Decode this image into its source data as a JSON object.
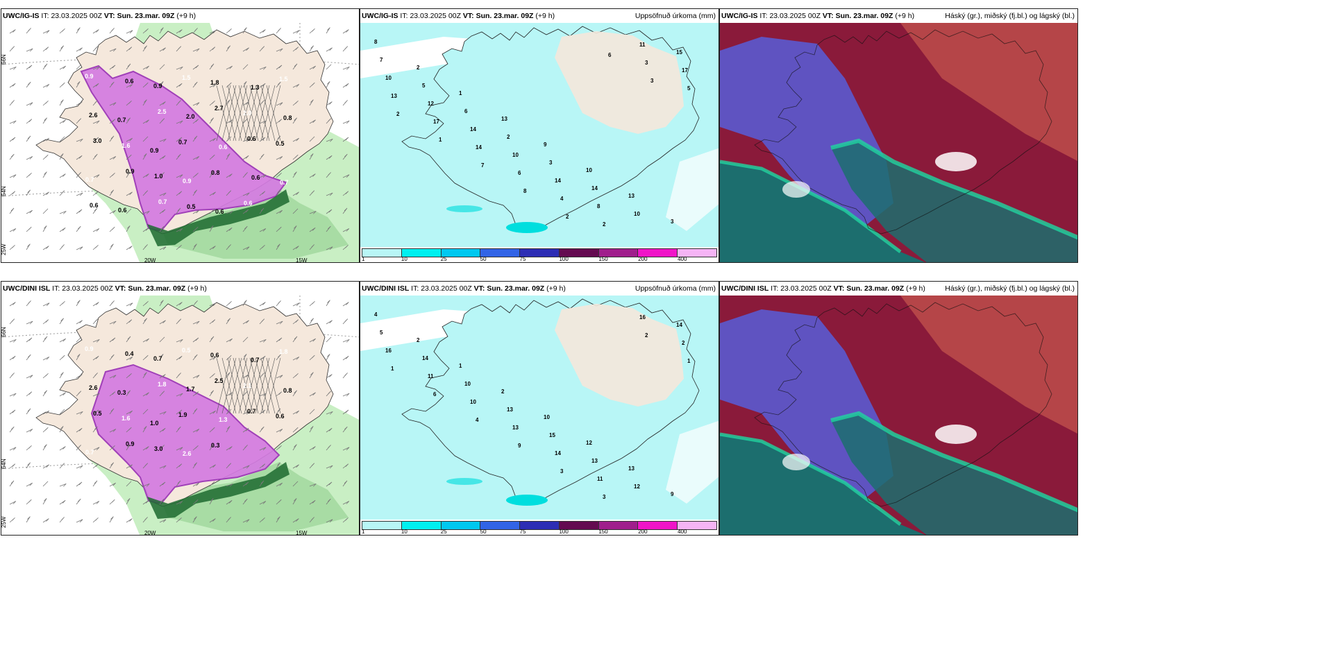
{
  "panels": [
    {
      "model": "UWC/IG-IS",
      "it_label": "IT:",
      "it": "23.03.2025 00Z",
      "vt_label": "VT:",
      "vt": "Sun. 23.mar. 09Z",
      "lead": "(+9 h)",
      "right": ""
    },
    {
      "model": "UWC/IG-IS",
      "it_label": "IT:",
      "it": "23.03.2025 00Z",
      "vt_label": "VT:",
      "vt": "Sun. 23.mar. 09Z",
      "lead": "(+9 h)",
      "right": "Uppsöfnuð úrkoma (mm)"
    },
    {
      "model": "UWC/IG-IS",
      "it_label": "IT:",
      "it": "23.03.2025 00Z",
      "vt_label": "VT:",
      "vt": "Sun. 23.mar. 09Z",
      "lead": "(+9 h)",
      "right": "Háský (gr.), miðský (fj.bl.) og lágský (bl.)"
    },
    {
      "model": "UWC/DINI ISL",
      "it_label": "IT:",
      "it": "23.03.2025 00Z",
      "vt_label": "VT:",
      "vt": "Sun. 23.mar. 09Z",
      "lead": "(+9 h)",
      "right": ""
    },
    {
      "model": "UWC/DINI ISL",
      "it_label": "IT:",
      "it": "23.03.2025 00Z",
      "vt_label": "VT:",
      "vt": "Sun. 23.mar. 09Z",
      "lead": "(+9 h)",
      "right": "Uppsöfnuð úrkoma (mm)"
    },
    {
      "model": "UWC/DINI ISL",
      "it_label": "IT:",
      "it": "23.03.2025 00Z",
      "vt_label": "VT:",
      "vt": "Sun. 23.mar. 09Z",
      "lead": "(+9 h)",
      "right": "Háský (gr.), miðský (fj.bl.) og lágský (bl.)"
    }
  ],
  "axes": {
    "lat66": "66N",
    "lat64": "64N",
    "lon25": "25W",
    "lon20": "20W",
    "lon15": "15W"
  },
  "precip_scale": {
    "ticks": [
      "1",
      "10",
      "25",
      "50",
      "75",
      "100",
      "150",
      "200",
      "400"
    ],
    "colors": [
      "#b8f6f6",
      "#00f0f0",
      "#00c8f0",
      "#3264e6",
      "#2d2db4",
      "#640a50",
      "#a01e8c",
      "#f014c8",
      "#f5b4f5"
    ]
  },
  "colors": {
    "land": "#f5e8dc",
    "land_shade": "#e8dccf",
    "sea": "#ffffff",
    "precip_light": "#b8f6f6",
    "rain_green_light": "#c9efc4",
    "rain_green": "#7cc07a",
    "rain_green_dark": "#1d6a30",
    "snow_magenta": "#d27ae0",
    "snow_magenta_dark": "#a040b8",
    "cloud_high": "#8a1a3a",
    "cloud_mid": "#5a5ad0",
    "cloud_low": "#1c6e6e",
    "cloud_low_edge": "#20d4a0"
  },
  "wind_left_labels_top": [
    "0.9",
    "0.6",
    "0.9",
    "1.5",
    "1.8",
    "1.3",
    "1.5",
    "2.6",
    "0.7",
    "2.5",
    "2.0",
    "2.7",
    "2.0",
    "0.8",
    "3.0",
    "1.6",
    "0.9",
    "0.7",
    "0.6",
    "0.6",
    "0.5",
    "0.7",
    "0.9",
    "1.0",
    "0.9",
    "0.8",
    "0.6",
    "0.7",
    "0.6",
    "0.6",
    "0.7",
    "0.5",
    "0.6",
    "0.6"
  ],
  "wind_left_labels_bottom": [
    "0.9",
    "0.4",
    "0.7",
    "0.5",
    "0.6",
    "0.7",
    "1.8",
    "2.6",
    "0.3",
    "1.8",
    "1.7",
    "2.5",
    "2.1",
    "0.8",
    "0.5",
    "1.6",
    "1.0",
    "1.9",
    "1.3",
    "0.7",
    "0.6",
    "0.7",
    "0.9",
    "3.0",
    "2.6",
    "0.3"
  ],
  "precip_labels_top": [
    "8",
    "2",
    "1",
    "13",
    "9",
    "10",
    "13",
    "3",
    "7",
    "5",
    "6",
    "2",
    "3",
    "14",
    "10",
    "15",
    "10",
    "12",
    "14",
    "10",
    "14",
    "8",
    "11",
    "17",
    "13",
    "17",
    "14",
    "6",
    "4",
    "2",
    "3",
    "5",
    "2",
    "1",
    "7",
    "8",
    "2",
    "6",
    "3"
  ],
  "precip_labels_bottom": [
    "4",
    "2",
    "1",
    "2",
    "10",
    "12",
    "13",
    "9",
    "5",
    "14",
    "10",
    "13",
    "15",
    "13",
    "12",
    "14",
    "16",
    "11",
    "10",
    "13",
    "14",
    "11",
    "16",
    "2",
    "1",
    "6",
    "4",
    "9",
    "3",
    "3",
    "2",
    "1"
  ]
}
